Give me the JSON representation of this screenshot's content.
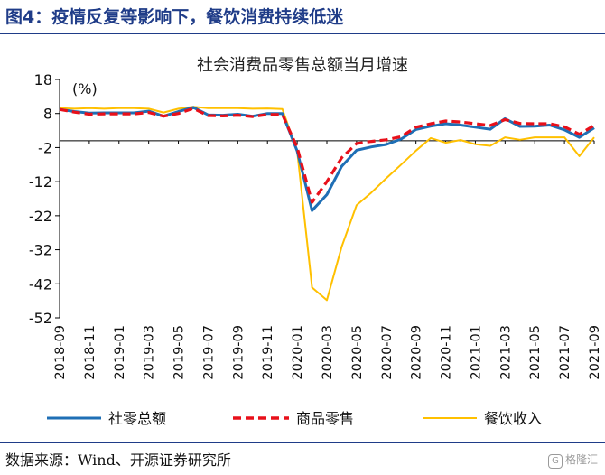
{
  "figure_title": "图4：疫情反复等影响下，餐饮消费持续低迷",
  "source": "数据来源：Wind、开源证券研究所",
  "watermark": "格隆汇",
  "chart_data": {
    "type": "line",
    "title": "社会消费品零售总额当月增速",
    "unit_label": "(%)",
    "ylim": [
      -52,
      18
    ],
    "yticks": [
      18,
      8,
      -2,
      -12,
      -22,
      -32,
      -42,
      -52
    ],
    "x": [
      "2018-09",
      "2018-10",
      "2018-11",
      "2018-12",
      "2019-01",
      "2019-02",
      "2019-03",
      "2019-04",
      "2019-05",
      "2019-06",
      "2019-07",
      "2019-08",
      "2019-09",
      "2019-10",
      "2019-11",
      "2019-12",
      "2020-01",
      "2020-02",
      "2020-03",
      "2020-04",
      "2020-05",
      "2020-06",
      "2020-07",
      "2020-08",
      "2020-09",
      "2020-10",
      "2020-11",
      "2020-12",
      "2021-01",
      "2021-02",
      "2021-03",
      "2021-04",
      "2021-05",
      "2021-06",
      "2021-07",
      "2021-08",
      "2021-09"
    ],
    "xtick_labels": [
      "2018-09",
      "2018-11",
      "2019-01",
      "2019-03",
      "2019-05",
      "2019-07",
      "2019-09",
      "2019-11",
      "2020-01",
      "2020-03",
      "2020-05",
      "2020-07",
      "2020-09",
      "2020-11",
      "2021-01",
      "2021-03",
      "2021-05",
      "2021-07",
      "2021-09"
    ],
    "series": [
      {
        "name": "社零总额",
        "color": "#1f6fb5",
        "style": "solid",
        "values": [
          9.2,
          8.6,
          8.1,
          8.2,
          8.2,
          8.2,
          8.7,
          7.2,
          8.6,
          9.8,
          7.6,
          7.5,
          7.8,
          7.2,
          8.0,
          8.0,
          -3.0,
          -20.5,
          -15.8,
          -7.5,
          -2.8,
          -1.8,
          -1.1,
          0.5,
          3.3,
          4.3,
          5.0,
          4.6,
          4.0,
          3.4,
          6.5,
          4.2,
          4.3,
          4.6,
          3.2,
          1.0,
          3.8
        ]
      },
      {
        "name": "商品零售",
        "color": "#e8101a",
        "style": "dashed",
        "values": [
          9.2,
          8.4,
          7.8,
          7.9,
          7.9,
          7.9,
          8.3,
          7.2,
          8.0,
          9.5,
          7.4,
          7.3,
          7.5,
          7.1,
          7.7,
          7.7,
          -2.0,
          -18.1,
          -12.0,
          -5.0,
          -0.8,
          -0.2,
          0.3,
          1.2,
          4.0,
          5.0,
          5.8,
          5.5,
          5.0,
          4.5,
          6.2,
          5.1,
          5.0,
          5.0,
          4.1,
          1.9,
          4.5
        ]
      },
      {
        "name": "餐饮收入",
        "color": "#ffc000",
        "style": "solid",
        "values": [
          9.6,
          9.4,
          9.6,
          9.4,
          9.6,
          9.6,
          9.4,
          8.3,
          9.4,
          10.0,
          9.6,
          9.6,
          9.6,
          9.4,
          9.5,
          9.3,
          -3.0,
          -43.1,
          -46.8,
          -31.1,
          -18.9,
          -15.2,
          -11.0,
          -7.0,
          -2.9,
          0.8,
          -0.6,
          0.2,
          -1.0,
          -1.5,
          1.0,
          0.3,
          1.0,
          1.0,
          1.0,
          -4.5,
          1.0
        ]
      }
    ],
    "grid": false,
    "legend_position": "bottom"
  }
}
